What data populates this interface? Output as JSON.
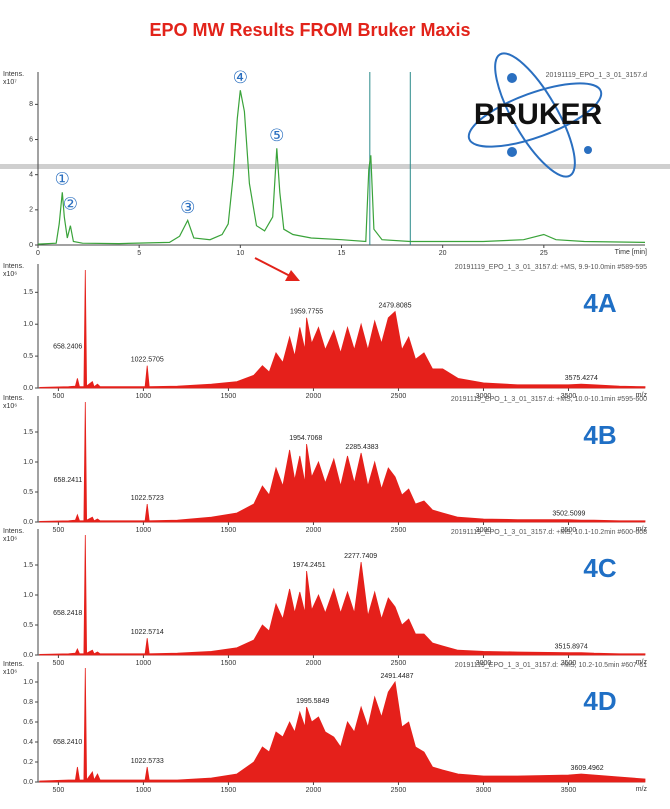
{
  "title": "EPO MW Results FROM Bruker Maxis",
  "logo": "BRUKER",
  "chart_data": [
    {
      "type": "line",
      "color": "#3aa33a",
      "header": "20191119_EPO_1_3_01_3157.d",
      "ylabel": "Intens.",
      "yunit": "x10⁷",
      "xlabel": "Time [min]",
      "xlim": [
        0,
        30
      ],
      "ylim": [
        0,
        9.5
      ],
      "xticks": [
        0,
        5,
        10,
        15,
        20,
        25
      ],
      "yticks": [
        0,
        2,
        4,
        6,
        8
      ],
      "x": [
        0,
        0.9,
        1.05,
        1.2,
        1.3,
        1.45,
        1.6,
        1.75,
        2.2,
        4,
        6.5,
        7.0,
        7.4,
        7.7,
        8.5,
        9.1,
        9.4,
        9.65,
        9.85,
        10.0,
        10.2,
        10.45,
        10.8,
        11.2,
        11.6,
        11.8,
        11.95,
        12.15,
        12.6,
        13.5,
        15,
        16.2,
        16.35,
        16.45,
        16.6,
        17,
        18.4,
        20,
        22,
        24,
        25,
        25.6,
        27,
        30
      ],
      "values": [
        0.05,
        0.1,
        1.2,
        3.0,
        1.6,
        0.4,
        1.1,
        0.2,
        0.1,
        0.08,
        0.15,
        0.5,
        1.4,
        0.4,
        0.3,
        0.6,
        1.2,
        4.0,
        7.2,
        8.8,
        7.6,
        3.5,
        1.1,
        0.8,
        1.6,
        5.5,
        3.0,
        0.9,
        0.6,
        0.4,
        0.3,
        0.2,
        4.3,
        5.1,
        0.9,
        0.3,
        0.2,
        0.2,
        0.2,
        0.3,
        0.6,
        0.3,
        0.2,
        0.15
      ],
      "markers": [
        16.4,
        18.4
      ],
      "marker_color": "#2a8a8a",
      "annotations": [
        {
          "label": "①",
          "x": 1.2
        },
        {
          "label": "②",
          "x": 1.6
        },
        {
          "label": "③",
          "x": 7.4
        },
        {
          "label": "④",
          "x": 10.0
        },
        {
          "label": "⑤",
          "x": 11.8
        }
      ]
    },
    {
      "type": "area",
      "color": "#e5201b",
      "header": "20191119_EPO_1_3_01_3157.d: +MS, 9.9-10.0min #589-595",
      "panel_label": "4A",
      "ylabel": "Intens.",
      "yunit": "x10⁶",
      "xlabel": "m/z",
      "xlim": [
        380,
        3950
      ],
      "ylim": [
        0,
        1.85
      ],
      "xticks": [
        500,
        1000,
        1500,
        2000,
        2500,
        3000,
        3500
      ],
      "yticks": [
        {
          "value": 0,
          "label": "0.0"
        },
        0.5,
        {
          "value": 1,
          "label": "1.0"
        },
        1.5
      ],
      "x": [
        390,
        560,
        600,
        612,
        624,
        650,
        658,
        666,
        700,
        710,
        730,
        745,
        1010,
        1022,
        1034,
        1200,
        1400,
        1550,
        1650,
        1700,
        1740,
        1780,
        1820,
        1860,
        1890,
        1920,
        1950,
        1960,
        1990,
        2030,
        2070,
        2120,
        2160,
        2200,
        2240,
        2280,
        2320,
        2360,
        2400,
        2440,
        2480,
        2520,
        2560,
        2600,
        2650,
        2700,
        2760,
        2850,
        3000,
        3200,
        3500,
        3575,
        3650,
        3800,
        3950
      ],
      "values": [
        0.01,
        0.02,
        0.03,
        0.15,
        0.02,
        0.02,
        1.85,
        0.03,
        0.1,
        0.02,
        0.06,
        0.02,
        0.02,
        0.35,
        0.02,
        0.03,
        0.06,
        0.1,
        0.2,
        0.35,
        0.25,
        0.55,
        0.4,
        0.8,
        0.5,
        0.95,
        0.6,
        1.1,
        0.7,
        0.95,
        0.6,
        0.9,
        0.55,
        0.95,
        0.6,
        1.0,
        0.6,
        1.05,
        0.7,
        1.1,
        1.2,
        0.6,
        0.8,
        0.45,
        0.55,
        0.3,
        0.3,
        0.15,
        0.08,
        0.05,
        0.05,
        0.06,
        0.05,
        0.03,
        0.02
      ],
      "annotations": [
        {
          "label": "658.2406",
          "x": 658.2406
        },
        {
          "label": "1022.5705",
          "x": 1022.5705
        },
        {
          "label": "1959.7755",
          "x": 1959.7755
        },
        {
          "label": "2479.8085",
          "x": 2479.8085
        },
        {
          "label": "3575.4274",
          "x": 3575.4274
        }
      ]
    },
    {
      "type": "area",
      "color": "#e5201b",
      "header": "20191119_EPO_1_3_01_3157.d: +MS, 10.0-10.1min #595-600",
      "panel_label": "4B",
      "ylabel": "Intens.",
      "yunit": "x10⁶",
      "xlabel": "m/z",
      "xlim": [
        380,
        3950
      ],
      "ylim": [
        0,
        2.0
      ],
      "xticks": [
        500,
        1000,
        1500,
        2000,
        2500,
        3000,
        3500
      ],
      "yticks": [
        {
          "value": 0,
          "label": "0.0"
        },
        0.5,
        {
          "value": 1,
          "label": "1.0"
        },
        1.5
      ],
      "x": [
        390,
        560,
        600,
        612,
        624,
        650,
        658,
        666,
        700,
        710,
        730,
        745,
        1010,
        1022,
        1034,
        1200,
        1400,
        1550,
        1650,
        1700,
        1740,
        1780,
        1820,
        1860,
        1890,
        1920,
        1950,
        1960,
        1990,
        2030,
        2070,
        2120,
        2160,
        2200,
        2240,
        2280,
        2320,
        2360,
        2400,
        2440,
        2480,
        2520,
        2560,
        2600,
        2650,
        2700,
        2760,
        2850,
        3000,
        3200,
        3500,
        3575,
        3650,
        3800,
        3950
      ],
      "values": [
        0.01,
        0.02,
        0.03,
        0.12,
        0.02,
        0.02,
        2.0,
        0.03,
        0.08,
        0.02,
        0.05,
        0.02,
        0.02,
        0.3,
        0.02,
        0.03,
        0.08,
        0.15,
        0.3,
        0.6,
        0.45,
        0.9,
        0.6,
        1.2,
        0.7,
        1.1,
        0.65,
        1.3,
        0.75,
        1.0,
        0.65,
        1.05,
        0.6,
        1.1,
        0.65,
        1.15,
        0.6,
        1.0,
        0.55,
        0.9,
        0.75,
        0.45,
        0.55,
        0.3,
        0.35,
        0.2,
        0.15,
        0.08,
        0.05,
        0.04,
        0.04,
        0.03,
        0.03,
        0.02,
        0.02
      ],
      "annotations": [
        {
          "label": "658.2411",
          "x": 658.2411
        },
        {
          "label": "1022.5723",
          "x": 1022.5723
        },
        {
          "label": "1954.7068",
          "x": 1954.7068
        },
        {
          "label": "2285.4383",
          "x": 2285.4383
        },
        {
          "label": "3502.5099",
          "x": 3502.5099
        }
      ]
    },
    {
      "type": "area",
      "color": "#e5201b",
      "header": "20191119_EPO_1_3_01_3157.d: +MS, 10.1-10.2min #600-608",
      "panel_label": "4C",
      "ylabel": "Intens.",
      "yunit": "x10⁶",
      "xlabel": "m/z",
      "xlim": [
        380,
        3950
      ],
      "ylim": [
        0,
        2.0
      ],
      "xticks": [
        500,
        1000,
        1500,
        2000,
        2500,
        3000,
        3500
      ],
      "yticks": [
        {
          "value": 0,
          "label": "0.0"
        },
        0.5,
        {
          "value": 1,
          "label": "1.0"
        },
        1.5
      ],
      "x": [
        390,
        560,
        600,
        612,
        624,
        650,
        658,
        666,
        700,
        710,
        730,
        745,
        1010,
        1022,
        1034,
        1200,
        1400,
        1550,
        1650,
        1700,
        1740,
        1780,
        1820,
        1860,
        1890,
        1920,
        1950,
        1960,
        1990,
        2030,
        2070,
        2120,
        2160,
        2200,
        2240,
        2280,
        2320,
        2360,
        2400,
        2440,
        2480,
        2520,
        2560,
        2600,
        2650,
        2700,
        2760,
        2850,
        3000,
        3200,
        3500,
        3575,
        3650,
        3800,
        3950
      ],
      "values": [
        0.01,
        0.02,
        0.03,
        0.1,
        0.02,
        0.02,
        2.0,
        0.03,
        0.08,
        0.02,
        0.05,
        0.02,
        0.02,
        0.28,
        0.02,
        0.03,
        0.06,
        0.12,
        0.25,
        0.5,
        0.4,
        0.85,
        0.6,
        1.1,
        0.7,
        1.05,
        0.7,
        1.4,
        0.75,
        1.0,
        0.7,
        1.1,
        0.7,
        1.05,
        0.7,
        1.55,
        0.65,
        1.05,
        0.6,
        0.95,
        0.8,
        0.5,
        0.6,
        0.35,
        0.35,
        0.2,
        0.15,
        0.08,
        0.06,
        0.05,
        0.04,
        0.04,
        0.03,
        0.02,
        0.02
      ],
      "annotations": [
        {
          "label": "658.2418",
          "x": 658.2418
        },
        {
          "label": "1022.5714",
          "x": 1022.5714
        },
        {
          "label": "1974.2451",
          "x": 1974.2451
        },
        {
          "label": "2277.7409",
          "x": 2277.7409
        },
        {
          "label": "3515.8974",
          "x": 3515.8974
        }
      ]
    },
    {
      "type": "area",
      "color": "#e5201b",
      "header": "20191119_EPO_1_3_01_3157.d: +MS, 10.2-10.5min #607-61",
      "panel_label": "4D",
      "ylabel": "Intens.",
      "yunit": "x10⁶",
      "xlabel": "m/z",
      "xlim": [
        380,
        3950
      ],
      "ylim": [
        0,
        1.14
      ],
      "xticks": [
        500,
        1000,
        1500,
        2000,
        2500,
        3000,
        3500
      ],
      "yticks": [
        {
          "value": 0,
          "label": "0.0"
        },
        0.2,
        0.4,
        0.6,
        0.8,
        {
          "value": 1,
          "label": "1.0"
        }
      ],
      "x": [
        390,
        560,
        600,
        612,
        624,
        650,
        658,
        666,
        700,
        710,
        730,
        745,
        1010,
        1022,
        1034,
        1200,
        1400,
        1550,
        1650,
        1700,
        1740,
        1780,
        1820,
        1860,
        1890,
        1920,
        1950,
        1960,
        1990,
        2030,
        2070,
        2120,
        2160,
        2200,
        2240,
        2280,
        2320,
        2360,
        2400,
        2440,
        2480,
        2520,
        2560,
        2600,
        2650,
        2700,
        2760,
        2850,
        3000,
        3200,
        3500,
        3575,
        3650,
        3800,
        3950
      ],
      "values": [
        0.01,
        0.02,
        0.02,
        0.15,
        0.02,
        0.02,
        1.14,
        0.02,
        0.1,
        0.02,
        0.08,
        0.02,
        0.02,
        0.15,
        0.02,
        0.02,
        0.04,
        0.08,
        0.2,
        0.35,
        0.3,
        0.5,
        0.45,
        0.6,
        0.5,
        0.7,
        0.55,
        0.75,
        0.6,
        0.65,
        0.5,
        0.45,
        0.35,
        0.6,
        0.5,
        0.75,
        0.55,
        0.85,
        0.65,
        0.9,
        1.0,
        0.55,
        0.6,
        0.35,
        0.3,
        0.15,
        0.12,
        0.08,
        0.06,
        0.06,
        0.07,
        0.08,
        0.07,
        0.05,
        0.03
      ],
      "annotations": [
        {
          "label": "658.2410",
          "x": 658.241
        },
        {
          "label": "1022.5733",
          "x": 1022.5733
        },
        {
          "label": "1995.5849",
          "x": 1995.5849
        },
        {
          "label": "2491.4487",
          "x": 2491.4487
        },
        {
          "label": "3609.4962",
          "x": 3609.4962
        }
      ]
    }
  ]
}
